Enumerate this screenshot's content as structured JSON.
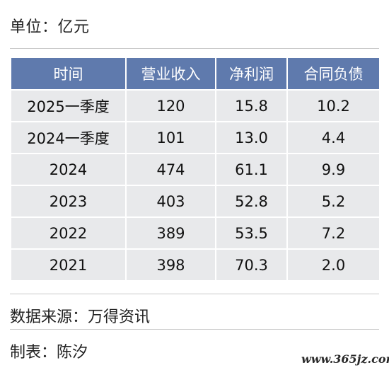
{
  "unit_label": "单位：亿元",
  "chart_data": {
    "type": "table",
    "columns": [
      "时间",
      "营业收入",
      "净利润",
      "合同负债"
    ],
    "rows": [
      [
        "2025一季度",
        "120",
        "15.8",
        "10.2"
      ],
      [
        "2024一季度",
        "101",
        "13.0",
        "4.4"
      ],
      [
        "2024",
        "474",
        "61.1",
        "9.9"
      ],
      [
        "2023",
        "403",
        "52.8",
        "5.2"
      ],
      [
        "2022",
        "389",
        "53.5",
        "7.2"
      ],
      [
        "2021",
        "398",
        "70.3",
        "2.0"
      ]
    ]
  },
  "source_label": "数据来源：万得资讯",
  "author_label": "制表：陈汐",
  "watermark": "www.365jz.com",
  "colors": {
    "header_bg": "#5f7aad",
    "cell_bg": "#e8e9eb",
    "header_text": "#ffffff"
  }
}
